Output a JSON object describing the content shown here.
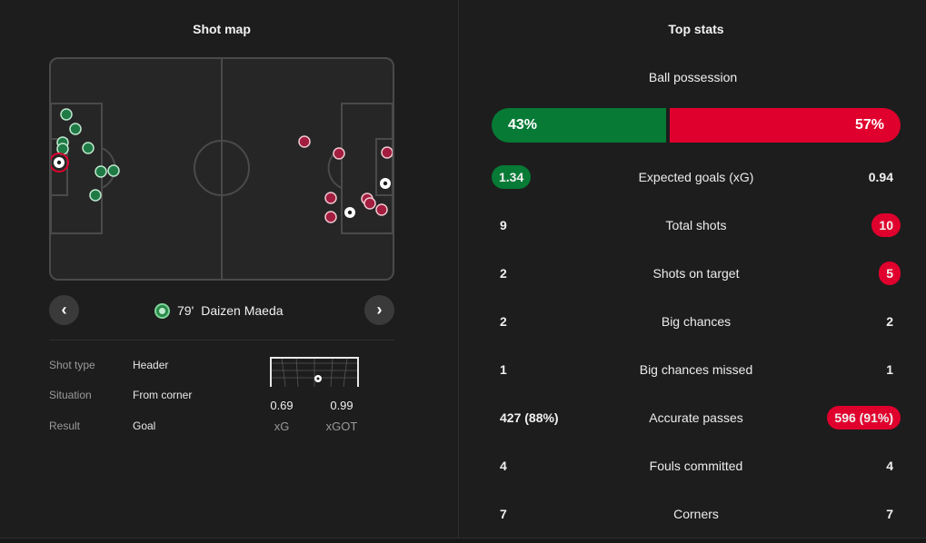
{
  "colors": {
    "home": "#077a36",
    "away": "#e0002d",
    "home_marker": "#2f8f55",
    "away_marker": "#a21d3f"
  },
  "shot_map": {
    "title": "Shot map",
    "selected_shot": {
      "minute": "79'",
      "player": "Daizen Maeda",
      "details": [
        {
          "label": "Shot type",
          "value": "Header"
        },
        {
          "label": "Situation",
          "value": "From corner"
        },
        {
          "label": "Result",
          "value": "Goal"
        }
      ],
      "xg": "0.69",
      "xg_label": "xG",
      "xgot": "0.99",
      "xgot_label": "xGOT"
    },
    "prev_icon": "chevron-left-icon",
    "next_icon": "chevron-right-icon"
  },
  "top_stats": {
    "title": "Top stats",
    "possession": {
      "label": "Ball possession",
      "home": "43%",
      "away": "57%",
      "home_value": 43
    },
    "rows": [
      {
        "label": "Expected goals (xG)",
        "home": "1.34",
        "away": "0.94",
        "highlight": "home"
      },
      {
        "label": "Total shots",
        "home": "9",
        "away": "10",
        "highlight": "away"
      },
      {
        "label": "Shots on target",
        "home": "2",
        "away": "5",
        "highlight": "away"
      },
      {
        "label": "Big chances",
        "home": "2",
        "away": "2",
        "highlight": "none"
      },
      {
        "label": "Big chances missed",
        "home": "1",
        "away": "1",
        "highlight": "none"
      },
      {
        "label": "Accurate passes",
        "home": "427 (88%)",
        "away": "596 (91%)",
        "highlight": "away"
      },
      {
        "label": "Fouls committed",
        "home": "4",
        "away": "4",
        "highlight": "none"
      },
      {
        "label": "Corners",
        "home": "7",
        "away": "7",
        "highlight": "none"
      }
    ]
  }
}
